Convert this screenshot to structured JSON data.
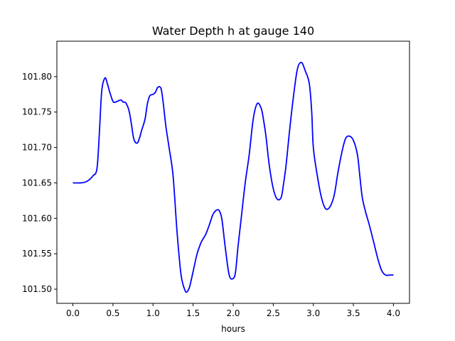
{
  "chart_data": {
    "type": "line",
    "title": "Water Depth h at gauge 140",
    "xlabel": "hours",
    "ylabel": "",
    "xlim": [
      -0.2,
      4.2
    ],
    "ylim": [
      101.48,
      101.85
    ],
    "xticks": [
      0.0,
      0.5,
      1.0,
      1.5,
      2.0,
      2.5,
      3.0,
      3.5,
      4.0
    ],
    "xtick_labels": [
      "0.0",
      "0.5",
      "1.0",
      "1.5",
      "2.0",
      "2.5",
      "3.0",
      "3.5",
      "4.0"
    ],
    "yticks": [
      101.5,
      101.55,
      101.6,
      101.65,
      101.7,
      101.75,
      101.8
    ],
    "ytick_labels": [
      "101.50",
      "101.55",
      "101.60",
      "101.65",
      "101.70",
      "101.75",
      "101.80"
    ],
    "grid": false,
    "series": [
      {
        "color": "#0000ff",
        "x": [
          0.0,
          0.1,
          0.15,
          0.2,
          0.25,
          0.3,
          0.33,
          0.36,
          0.4,
          0.43,
          0.46,
          0.5,
          0.53,
          0.57,
          0.6,
          0.63,
          0.66,
          0.7,
          0.73,
          0.76,
          0.8,
          0.83,
          0.86,
          0.9,
          0.93,
          0.96,
          1.0,
          1.03,
          1.06,
          1.1,
          1.13,
          1.16,
          1.2,
          1.25,
          1.3,
          1.35,
          1.4,
          1.43,
          1.46,
          1.5,
          1.55,
          1.6,
          1.63,
          1.66,
          1.7,
          1.75,
          1.8,
          1.83,
          1.86,
          1.9,
          1.95,
          2.0,
          2.03,
          2.06,
          2.1,
          2.15,
          2.2,
          2.25,
          2.3,
          2.35,
          2.38,
          2.41,
          2.45,
          2.5,
          2.55,
          2.6,
          2.63,
          2.66,
          2.7,
          2.75,
          2.8,
          2.85,
          2.9,
          2.95,
          2.98,
          3.0,
          3.05,
          3.1,
          3.15,
          3.2,
          3.25,
          3.28,
          3.3,
          3.35,
          3.4,
          3.45,
          3.5,
          3.55,
          3.58,
          3.61,
          3.65,
          3.7,
          3.75,
          3.8,
          3.85,
          3.9,
          3.95,
          3.98,
          4.0
        ],
        "y": [
          101.65,
          101.65,
          101.651,
          101.654,
          101.66,
          101.67,
          101.72,
          101.78,
          101.798,
          101.79,
          101.778,
          101.765,
          101.764,
          101.766,
          101.767,
          101.764,
          101.763,
          101.752,
          101.733,
          101.712,
          101.706,
          101.713,
          101.725,
          101.74,
          101.762,
          101.773,
          101.775,
          101.778,
          101.785,
          101.783,
          101.76,
          101.73,
          101.7,
          101.66,
          101.58,
          101.52,
          101.498,
          101.497,
          101.505,
          101.525,
          101.55,
          101.566,
          101.572,
          101.578,
          101.59,
          101.606,
          101.612,
          101.61,
          101.598,
          101.56,
          101.52,
          101.515,
          101.525,
          101.56,
          101.6,
          101.65,
          101.69,
          101.74,
          101.762,
          101.755,
          101.738,
          101.715,
          101.675,
          101.642,
          101.627,
          101.63,
          101.65,
          101.675,
          101.72,
          101.77,
          101.81,
          101.82,
          101.808,
          101.79,
          101.75,
          101.7,
          101.66,
          101.63,
          101.614,
          101.615,
          101.628,
          101.645,
          101.66,
          101.69,
          101.712,
          101.716,
          101.71,
          101.69,
          101.66,
          101.63,
          101.61,
          101.59,
          101.568,
          101.545,
          101.527,
          101.52,
          101.52,
          101.52,
          101.52
        ]
      }
    ]
  }
}
